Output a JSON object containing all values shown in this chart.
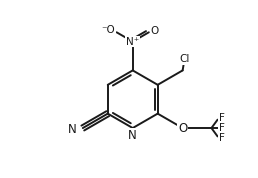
{
  "figure_width": 2.58,
  "figure_height": 1.78,
  "dpi": 100,
  "bg_color": "#ffffff",
  "line_color": "#1a1a1a",
  "line_width": 1.4,
  "font_size": 8.5,
  "font_size_small": 7.5,
  "xlim": [
    -1.5,
    9.5
  ],
  "ylim": [
    -1.0,
    8.5
  ]
}
